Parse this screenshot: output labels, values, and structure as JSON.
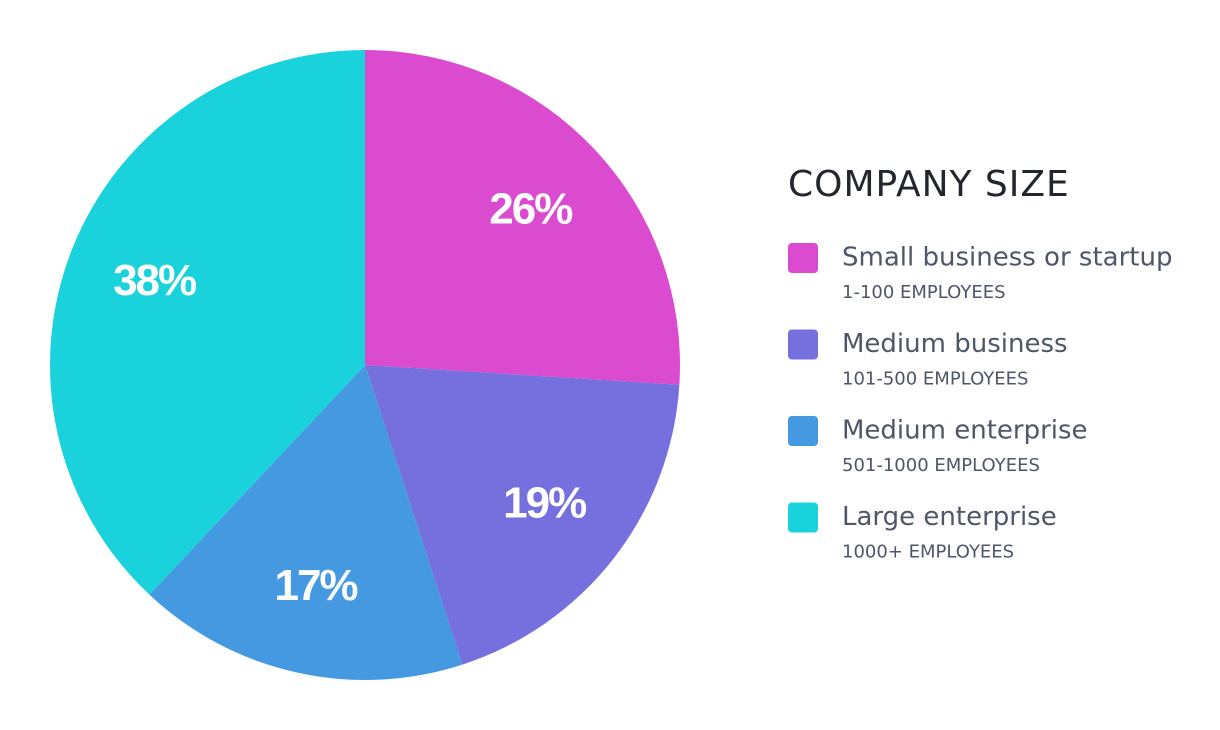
{
  "chart_data": {
    "type": "pie",
    "legend_title": "COMPANY SIZE",
    "categories": [
      "Small business or startup",
      "Medium business",
      "Medium enterprise",
      "Large enterprise"
    ],
    "descriptions": [
      "1-100 EMPLOYEES",
      "101-500 EMPLOYEES",
      "501-1000 EMPLOYEES",
      "1000+ EMPLOYEES"
    ],
    "values": [
      26,
      19,
      17,
      38
    ],
    "value_labels": [
      "26%",
      "19%",
      "17%",
      "38%"
    ],
    "colors": [
      "#db4bd0",
      "#7570de",
      "#4499e0",
      "#1ad2dc"
    ],
    "legend": "right"
  }
}
